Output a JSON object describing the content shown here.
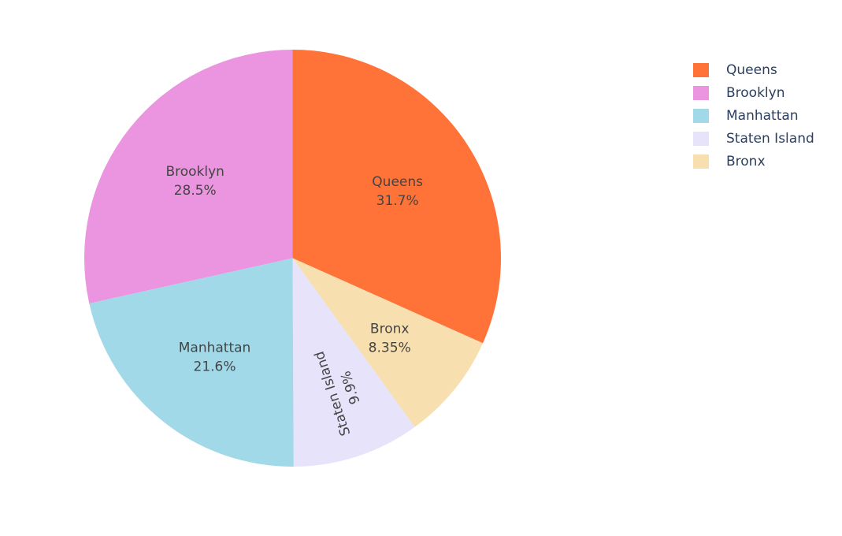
{
  "chart_data": {
    "type": "pie",
    "categories": [
      "Queens",
      "Brooklyn",
      "Manhattan",
      "Staten Island",
      "Bronx"
    ],
    "values": [
      31.7,
      28.5,
      21.6,
      9.9,
      8.35
    ],
    "value_labels": [
      "31.7%",
      "28.5%",
      "21.6%",
      "9.9%",
      "8.35%"
    ],
    "slice_order_clockwise": [
      "Queens",
      "Bronx",
      "Staten Island",
      "Manhattan",
      "Brooklyn"
    ],
    "start_angle": "12 o'clock",
    "direction": "clockwise",
    "colors": {
      "Queens": "#ff7339",
      "Brooklyn": "#eb94df",
      "Manhattan": "#a2d9e8",
      "Staten Island": "#e6e3fa",
      "Bronx": "#f7dfb0"
    },
    "legend_placement": "top-right",
    "title": ""
  },
  "legend": {
    "items": [
      {
        "label": "Queens",
        "color": "#ff7339"
      },
      {
        "label": "Brooklyn",
        "color": "#eb94df"
      },
      {
        "label": "Manhattan",
        "color": "#a2d9e8"
      },
      {
        "label": "Staten Island",
        "color": "#e6e3fa"
      },
      {
        "label": "Bronx",
        "color": "#f7dfb0"
      }
    ]
  }
}
